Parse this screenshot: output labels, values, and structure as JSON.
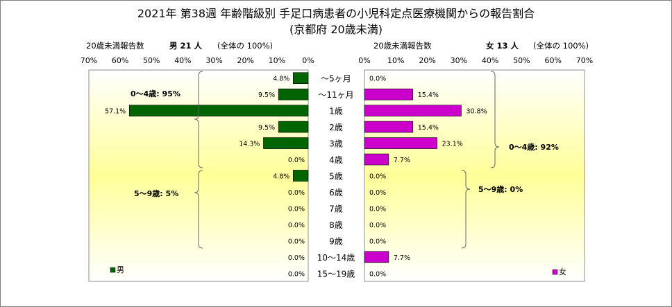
{
  "title_line1": "2021年 第38週 年齢階級別 手足口病患者の小児科定点医療機関からの報告割合",
  "title_line2": "(京都府 20歳未満)",
  "left_header": {
    "label": "20歳未満報告数",
    "count_label": "男  21 人",
    "total_note": "(全体の  100%)"
  },
  "right_header": {
    "label": "20歳未満報告数",
    "count_label": "女  13 人",
    "total_note": "(全体の  100%)"
  },
  "left_group_labels": [
    "0～4歳: 95%",
    "5～9歳: 5%"
  ],
  "right_group_labels": [
    "0～4歳: 92%",
    "5～9歳: 0%"
  ],
  "chart_data": {
    "type": "bar",
    "orientation": "horizontal",
    "layout": "population-pyramid",
    "categories": [
      "～5ヶ月",
      "～11ヶ月",
      "1歳",
      "2歳",
      "3歳",
      "4歳",
      "5歳",
      "6歳",
      "7歳",
      "8歳",
      "9歳",
      "10～14歳",
      "15～19歳"
    ],
    "xlim": [
      0,
      70
    ],
    "x_ticks": [
      "0%",
      "10%",
      "20%",
      "30%",
      "40%",
      "50%",
      "60%",
      "70%"
    ],
    "series": [
      {
        "name": "男",
        "side": "left",
        "color": "#006400",
        "values": [
          4.8,
          9.5,
          57.1,
          9.5,
          14.3,
          0.0,
          4.8,
          0.0,
          0.0,
          0.0,
          0.0,
          0.0,
          0.0
        ],
        "value_labels": [
          "4.8%",
          "9.5%",
          "57.1%",
          "9.5%",
          "14.3%",
          "0.0%",
          "4.8%",
          "0.0%",
          "0.0%",
          "0.0%",
          "0.0%",
          "0.0%",
          "0.0%"
        ]
      },
      {
        "name": "女",
        "side": "right",
        "color": "#cc00cc",
        "values": [
          0.0,
          15.4,
          30.8,
          15.4,
          23.1,
          7.7,
          0.0,
          0.0,
          0.0,
          0.0,
          0.0,
          7.7,
          0.0
        ],
        "value_labels": [
          "0.0%",
          "15.4%",
          "30.8%",
          "15.4%",
          "23.1%",
          "7.7%",
          "0.0%",
          "0.0%",
          "0.0%",
          "0.0%",
          "0.0%",
          "7.7%",
          "0.0%"
        ]
      }
    ],
    "legend": [
      "男",
      "女"
    ],
    "legend_position": "bottom-left / bottom-right"
  }
}
